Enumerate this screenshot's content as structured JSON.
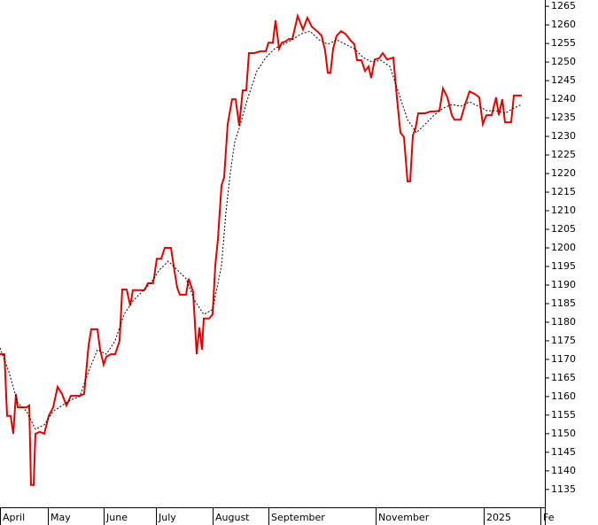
{
  "chart_data": {
    "type": "line",
    "xlim": [
      0,
      615
    ],
    "ylim": [
      1130.2,
      1266.7
    ],
    "xticks": [
      {
        "value": 0,
        "label": "April"
      },
      {
        "value": 54,
        "label": "May"
      },
      {
        "value": 117,
        "label": "June"
      },
      {
        "value": 176,
        "label": "July"
      },
      {
        "value": 240,
        "label": "August"
      },
      {
        "value": 303,
        "label": "September"
      },
      {
        "value": 424,
        "label": "November"
      },
      {
        "value": 546,
        "label": "2025"
      },
      {
        "value": 610,
        "label": "Fe"
      }
    ],
    "yticks": [
      1135,
      1140,
      1145,
      1150,
      1155,
      1160,
      1165,
      1170,
      1175,
      1180,
      1185,
      1190,
      1195,
      1200,
      1205,
      1210,
      1215,
      1220,
      1225,
      1230,
      1235,
      1240,
      1245,
      1250,
      1255,
      1260,
      1265
    ],
    "series": [
      {
        "color": "#e00000",
        "dash": false,
        "x": [
          0,
          5,
          8,
          12,
          15,
          18,
          20,
          30,
          33,
          35,
          38,
          40,
          45,
          50,
          55,
          60,
          65,
          70,
          75,
          80,
          90,
          95,
          100,
          103,
          110,
          113,
          117,
          120,
          125,
          130,
          135,
          138,
          143,
          147,
          150,
          158,
          163,
          167,
          173,
          177,
          182,
          186,
          193,
          196,
          200,
          203,
          210,
          213,
          218,
          222,
          225,
          228,
          230,
          236,
          240,
          243,
          246,
          250,
          253,
          257,
          262,
          266,
          270,
          274,
          278,
          281,
          287,
          294,
          300,
          303,
          308,
          311,
          315,
          318,
          322,
          326,
          330,
          336,
          342,
          347,
          352,
          358,
          363,
          367,
          370,
          373,
          376,
          380,
          385,
          390,
          395,
          400,
          403,
          408,
          412,
          416,
          419,
          423,
          428,
          432,
          437,
          444,
          448,
          452,
          456,
          460,
          463,
          466,
          469,
          472,
          480,
          486,
          490,
          496,
          500,
          505,
          510,
          513,
          520,
          525,
          530,
          536,
          541,
          545,
          549,
          555,
          560,
          563,
          567,
          570,
          577,
          580,
          589
        ],
        "values": [
          1171.4,
          1171.4,
          1154.8,
          1154.8,
          1150,
          1160.7,
          1157.1,
          1157.1,
          1157.6,
          1136.2,
          1136.2,
          1150,
          1150.5,
          1150,
          1154.8,
          1157.1,
          1162.6,
          1160.7,
          1157.6,
          1160.2,
          1160.2,
          1160.7,
          1173.8,
          1178.1,
          1178.1,
          1172.6,
          1168.6,
          1170.7,
          1171.4,
          1171.4,
          1175,
          1188.8,
          1188.8,
          1184.5,
          1188.6,
          1188.6,
          1188.6,
          1190.5,
          1190.5,
          1197.1,
          1197.1,
          1200,
          1200,
          1195.2,
          1189.3,
          1187.4,
          1187.4,
          1191.7,
          1188.1,
          1171.4,
          1178.6,
          1172.6,
          1181,
          1181,
          1182.1,
          1195.2,
          1202.4,
          1216.7,
          1219,
          1233.3,
          1240,
          1240,
          1232.9,
          1242.4,
          1242.4,
          1252.4,
          1252.4,
          1252.9,
          1252.9,
          1255.2,
          1255.2,
          1261.2,
          1253.6,
          1255.2,
          1255.5,
          1256.2,
          1256.2,
          1262.4,
          1258.8,
          1261.9,
          1259.5,
          1258.3,
          1257.1,
          1253.1,
          1247.1,
          1247.1,
          1253.6,
          1257.1,
          1258.3,
          1257.6,
          1256,
          1254.8,
          1250.5,
          1250.5,
          1247.6,
          1248.8,
          1245.7,
          1250.7,
          1251,
          1252.4,
          1250.7,
          1251.2,
          1240.5,
          1231,
          1229.8,
          1217.9,
          1217.9,
          1230.2,
          1232.1,
          1236.2,
          1236.2,
          1236.7,
          1236.7,
          1236.9,
          1242.9,
          1240.5,
          1235.7,
          1234.5,
          1234.5,
          1238.6,
          1242.1,
          1241.4,
          1240.5,
          1233.3,
          1235.7,
          1235.7,
          1240.5,
          1235.7,
          1240,
          1233.8,
          1233.8,
          1241,
          1241
        ]
      },
      {
        "color": "#000000",
        "dash": true,
        "x": [
          0,
          10,
          20,
          30,
          40,
          50,
          60,
          70,
          80,
          90,
          100,
          110,
          120,
          130,
          140,
          150,
          160,
          170,
          180,
          190,
          200,
          210,
          220,
          230,
          240,
          250,
          255,
          260,
          265,
          270,
          280,
          290,
          300,
          310,
          320,
          330,
          340,
          350,
          360,
          370,
          380,
          390,
          400,
          410,
          420,
          430,
          440,
          450,
          460,
          470,
          480,
          490,
          500,
          510,
          520,
          530,
          540,
          550,
          560,
          570,
          580,
          589
        ],
        "values": [
          1173.1,
          1166.7,
          1158.3,
          1156,
          1151.2,
          1152.4,
          1156,
          1157.6,
          1159.1,
          1160,
          1166.7,
          1172.6,
          1171.4,
          1175,
          1182.1,
          1185.7,
          1188.1,
          1190.5,
          1194.1,
          1196.4,
          1194.1,
          1191.7,
          1185.7,
          1182.1,
          1183.4,
          1195.2,
          1209.5,
          1220.3,
          1228.6,
          1232.2,
          1240.5,
          1247.6,
          1251.2,
          1253.6,
          1254.8,
          1256,
          1257.6,
          1258.3,
          1256,
          1254.8,
          1256,
          1254.8,
          1253.6,
          1251.2,
          1250,
          1250.5,
          1248.8,
          1241.7,
          1234.5,
          1231,
          1233.3,
          1235.7,
          1237.6,
          1238.6,
          1238.1,
          1239.3,
          1238.1,
          1236.9,
          1236.9,
          1236.2,
          1237.6,
          1238.6
        ]
      }
    ]
  }
}
